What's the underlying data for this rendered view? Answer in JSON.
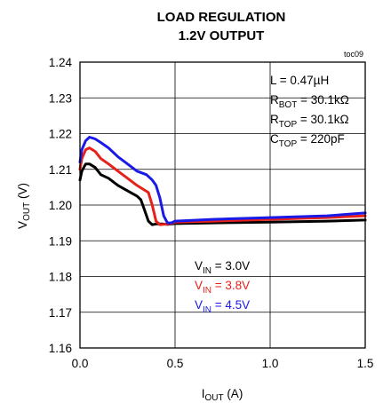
{
  "chart_data": {
    "type": "line",
    "title": [
      "LOAD REGULATION",
      "1.2V OUTPUT"
    ],
    "tag": "toc09",
    "xlabel": {
      "main": "I",
      "sub": "OUT",
      "unit": " (A)"
    },
    "ylabel": {
      "main": "V",
      "sub": "OUT",
      "unit": " (V)"
    },
    "xlim": [
      0,
      1.5
    ],
    "ylim": [
      1.16,
      1.24
    ],
    "xticks": [
      0,
      0.5,
      1.0,
      1.5
    ],
    "xtick_labels": [
      "0.0",
      "0.5",
      "1.0",
      "1.5"
    ],
    "yticks": [
      1.16,
      1.17,
      1.18,
      1.19,
      1.2,
      1.21,
      1.22,
      1.23,
      1.24
    ],
    "ytick_labels": [
      "1.16",
      "1.17",
      "1.18",
      "1.19",
      "1.20",
      "1.21",
      "1.22",
      "1.23",
      "1.24"
    ],
    "grid": true,
    "annotations": [
      {
        "main": "L = 0.47µH",
        "sub": "",
        "rest": ""
      },
      {
        "main": "R",
        "sub": "BOT",
        "rest": " = 30.1kΩ"
      },
      {
        "main": "R",
        "sub": "TOP",
        "rest": " = 30.1kΩ"
      },
      {
        "main": "C",
        "sub": "TOP",
        "rest": " = 220pF"
      }
    ],
    "series": [
      {
        "name": "V_IN = 3.0V",
        "label_main": "V",
        "label_sub": "IN",
        "label_rest": " = 3.0V",
        "color": "#000000",
        "x": [
          0.0,
          0.01,
          0.03,
          0.05,
          0.08,
          0.11,
          0.15,
          0.2,
          0.25,
          0.3,
          0.32,
          0.34,
          0.36,
          0.38,
          0.4,
          0.43,
          0.46,
          0.5,
          0.7,
          1.0,
          1.3,
          1.5
        ],
        "y": [
          1.207,
          1.2095,
          1.2115,
          1.2115,
          1.2105,
          1.2085,
          1.2075,
          1.2055,
          1.204,
          1.2025,
          1.2015,
          1.1985,
          1.1955,
          1.1945,
          1.1947,
          1.1947,
          1.1946,
          1.1948,
          1.195,
          1.1952,
          1.1955,
          1.1958
        ]
      },
      {
        "name": "V_IN = 3.8V",
        "label_main": "V",
        "label_sub": "IN",
        "label_rest": " = 3.8V",
        "color": "#e8201a",
        "x": [
          0.0,
          0.01,
          0.03,
          0.05,
          0.08,
          0.11,
          0.15,
          0.2,
          0.25,
          0.3,
          0.33,
          0.36,
          0.38,
          0.4,
          0.42,
          0.44,
          0.48,
          0.5,
          0.7,
          1.0,
          1.3,
          1.5
        ],
        "y": [
          1.21,
          1.213,
          1.2155,
          1.216,
          1.215,
          1.213,
          1.2115,
          1.2095,
          1.2075,
          1.2055,
          1.2045,
          1.2035,
          1.2,
          1.1955,
          1.1945,
          1.1946,
          1.1948,
          1.1952,
          1.1955,
          1.196,
          1.1965,
          1.197
        ]
      },
      {
        "name": "V_IN = 4.5V",
        "label_main": "V",
        "label_sub": "IN",
        "label_rest": " = 4.5V",
        "color": "#1a1ae8",
        "x": [
          0.0,
          0.01,
          0.03,
          0.05,
          0.08,
          0.11,
          0.15,
          0.2,
          0.25,
          0.3,
          0.35,
          0.38,
          0.4,
          0.42,
          0.44,
          0.46,
          0.48,
          0.5,
          0.7,
          1.0,
          1.3,
          1.5
        ],
        "y": [
          1.212,
          1.2155,
          1.218,
          1.219,
          1.2185,
          1.2175,
          1.216,
          1.2135,
          1.2115,
          1.2095,
          1.2085,
          1.207,
          1.2055,
          1.202,
          1.197,
          1.195,
          1.195,
          1.1955,
          1.196,
          1.1965,
          1.197,
          1.1978
        ]
      }
    ]
  }
}
